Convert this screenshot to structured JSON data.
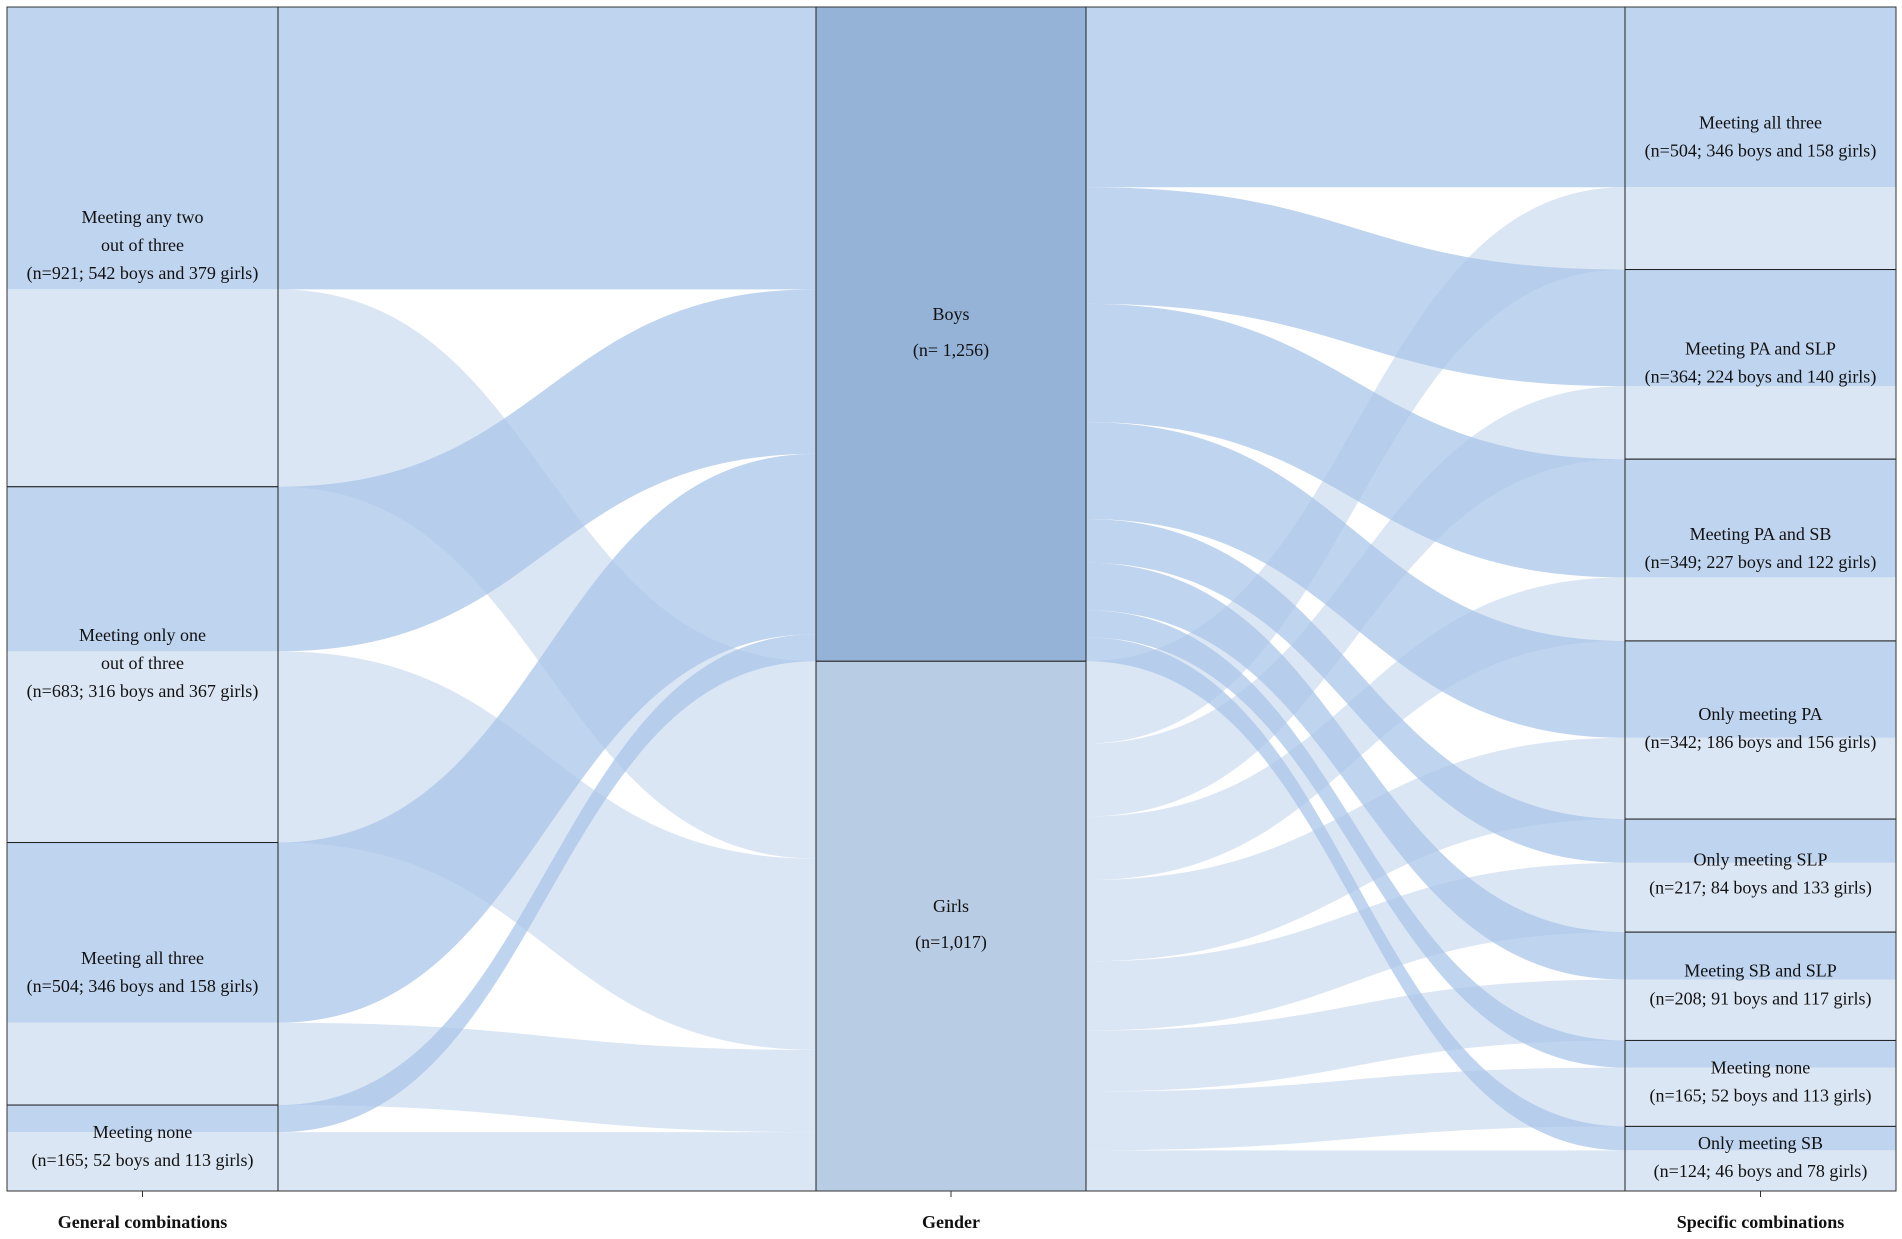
{
  "chart_data": {
    "type": "alluvial",
    "boys_color": "#a9c5ea",
    "girls_color": "#cfddf0",
    "gender_colors": [
      "#95b3d7",
      "#b8cce4"
    ],
    "strata": [
      {
        "axis": "General combinations",
        "nodes": [
          {
            "label": [
              "Meeting any two",
              "out of three",
              "(n=921; 542 boys and 379 girls)"
            ],
            "boys": 542,
            "girls": 379
          },
          {
            "label": [
              "Meeting only one",
              "out of three",
              "(n=683; 316 boys and 367 girls)"
            ],
            "boys": 316,
            "girls": 367
          },
          {
            "label": [
              "Meeting all three",
              "(n=504; 346 boys and 158 girls)"
            ],
            "boys": 346,
            "girls": 158
          },
          {
            "label": [
              "Meeting none",
              "(n=165; 52 boys and 113 girls)"
            ],
            "boys": 52,
            "girls": 113
          }
        ]
      },
      {
        "axis": "Gender",
        "nodes": [
          {
            "label": [
              "Boys",
              "(n= 1,256)"
            ],
            "value": 1256
          },
          {
            "label": [
              "Girls",
              "(n=1,017)"
            ],
            "value": 1017
          }
        ]
      },
      {
        "axis": "Specific combinations",
        "nodes": [
          {
            "label": [
              "Meeting all three",
              "(n=504; 346 boys and 158 girls)"
            ],
            "boys": 346,
            "girls": 158
          },
          {
            "label": [
              "Meeting PA and SLP",
              "(n=364; 224 boys and 140 girls)"
            ],
            "boys": 224,
            "girls": 140
          },
          {
            "label": [
              "Meeting PA and SB",
              "(n=349; 227 boys and 122 girls)"
            ],
            "boys": 227,
            "girls": 122
          },
          {
            "label": [
              "Only meeting PA",
              "(n=342; 186 boys and 156 girls)"
            ],
            "boys": 186,
            "girls": 156
          },
          {
            "label": [
              "Only meeting SLP",
              "(n=217; 84 boys and 133 girls)"
            ],
            "boys": 84,
            "girls": 133
          },
          {
            "label": [
              "Meeting SB and SLP",
              "(n=208; 91 boys and 117 girls)"
            ],
            "boys": 91,
            "girls": 117
          },
          {
            "label": [
              "Meeting none",
              "(n=165; 52 boys and 113 girls)"
            ],
            "boys": 52,
            "girls": 113
          },
          {
            "label": [
              "Only meeting SB",
              "(n=124; 46 boys and 78 girls)"
            ],
            "boys": 46,
            "girls": 78
          }
        ]
      }
    ]
  }
}
